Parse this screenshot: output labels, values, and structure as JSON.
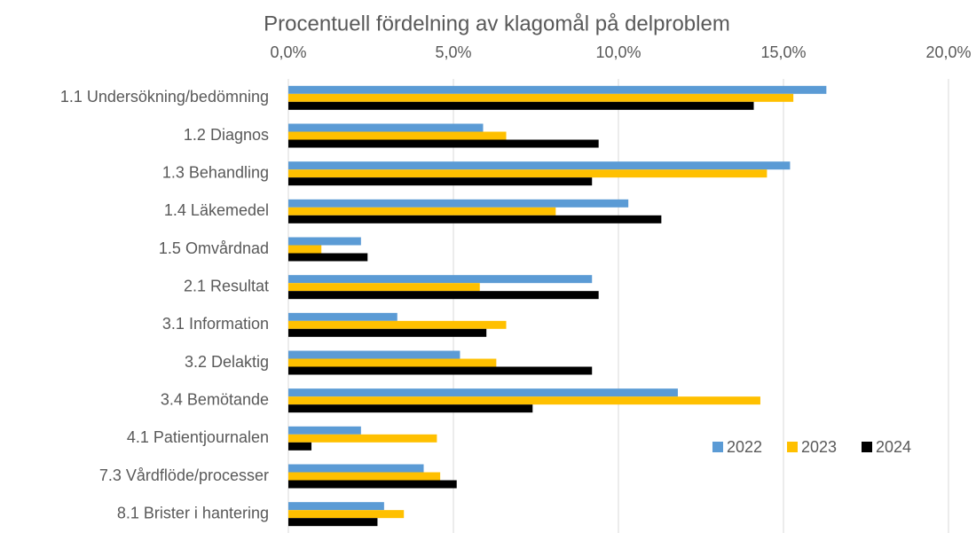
{
  "chart_data": {
    "type": "barh",
    "title": "Procentuell fördelning av klagomål på delproblem",
    "categories": [
      "1.1 Undersökning/bedömning",
      "1.2 Diagnos",
      "1.3 Behandling",
      "1.4 Läkemedel",
      "1.5 Omvårdnad",
      "2.1 Resultat",
      "3.1 Information",
      "3.2 Delaktig",
      "3.4 Bemötande",
      "4.1 Patientjournalen",
      "7.3 Vårdflöde/processer",
      "8.1 Brister i hantering"
    ],
    "series": [
      {
        "name": "2022",
        "color": "#5b9bd5",
        "values": [
          16.3,
          5.9,
          15.2,
          10.3,
          2.2,
          9.2,
          3.3,
          5.2,
          11.8,
          2.2,
          4.1,
          2.9
        ]
      },
      {
        "name": "2023",
        "color": "#ffc000",
        "values": [
          15.3,
          6.6,
          14.5,
          8.1,
          1.0,
          5.8,
          6.6,
          6.3,
          14.3,
          4.5,
          4.6,
          3.5
        ]
      },
      {
        "name": "2024",
        "color": "#000000",
        "values": [
          14.1,
          9.4,
          9.2,
          11.3,
          2.4,
          9.4,
          6.0,
          9.2,
          7.4,
          0.7,
          5.1,
          2.7
        ]
      }
    ],
    "xlim": [
      0,
      20
    ],
    "xticks": [
      {
        "value": 0,
        "label": "0,0%"
      },
      {
        "value": 5,
        "label": "5,0%"
      },
      {
        "value": 10,
        "label": "10,0%"
      },
      {
        "value": 15,
        "label": "15,0%"
      },
      {
        "value": 20,
        "label": "20,0%"
      }
    ],
    "grid": true,
    "legend": "lower right"
  }
}
